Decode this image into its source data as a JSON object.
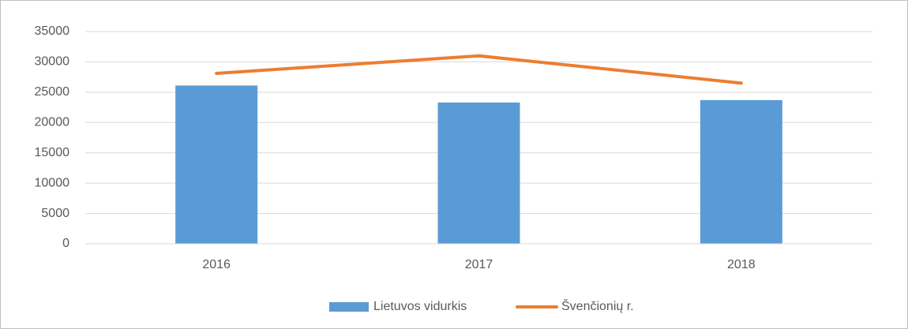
{
  "chart_data": {
    "type": "combo",
    "categories": [
      "2016",
      "2017",
      "2018"
    ],
    "series": [
      {
        "name": "Lietuvos vidurkis",
        "type": "bar",
        "color": "#5b9bd5",
        "values": [
          26100,
          23300,
          23700
        ]
      },
      {
        "name": "Švenčionių r.",
        "type": "line",
        "color": "#ed7d31",
        "values": [
          28100,
          31000,
          26500
        ]
      }
    ],
    "ylim": [
      0,
      35000
    ],
    "yticks": [
      0,
      5000,
      10000,
      15000,
      20000,
      25000,
      30000,
      35000
    ],
    "grid": true
  }
}
